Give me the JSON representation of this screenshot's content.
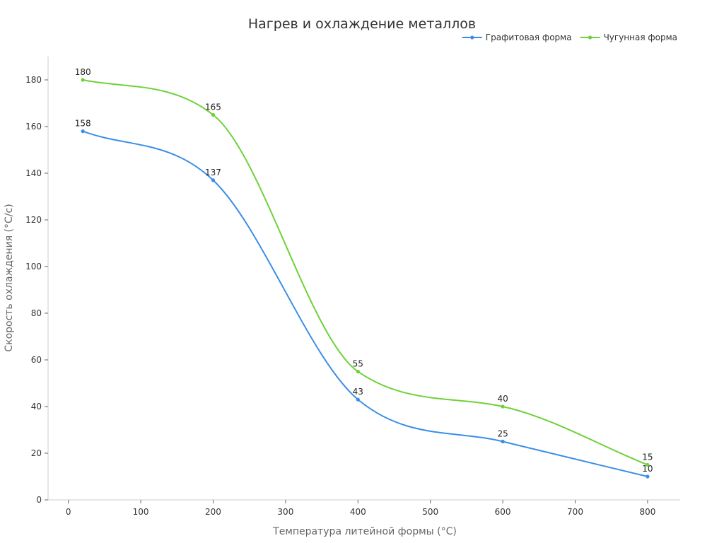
{
  "chart_data": {
    "type": "line",
    "title": "Нагрев и охлаждение металлов",
    "xlabel": "Температура литейной формы (°C)",
    "ylabel": "Скорость охлаждения (°C/с)",
    "xlim": [
      -28,
      845
    ],
    "ylim": [
      0,
      190
    ],
    "x_ticks": [
      0,
      100,
      200,
      300,
      400,
      500,
      600,
      700,
      800
    ],
    "y_ticks": [
      0,
      20,
      40,
      60,
      80,
      100,
      120,
      140,
      160,
      180
    ],
    "x": [
      20,
      200,
      400,
      600,
      800
    ],
    "series": [
      {
        "name": "Графитовая форма",
        "color": "#3a8ee6",
        "values": [
          158,
          137,
          43,
          25,
          10
        ]
      },
      {
        "name": "Чугунная форма",
        "color": "#6fd13a",
        "values": [
          180,
          165,
          55,
          40,
          15
        ]
      }
    ],
    "legend_position": "top-right",
    "grid": false,
    "smooth": true,
    "data_labels": true
  }
}
